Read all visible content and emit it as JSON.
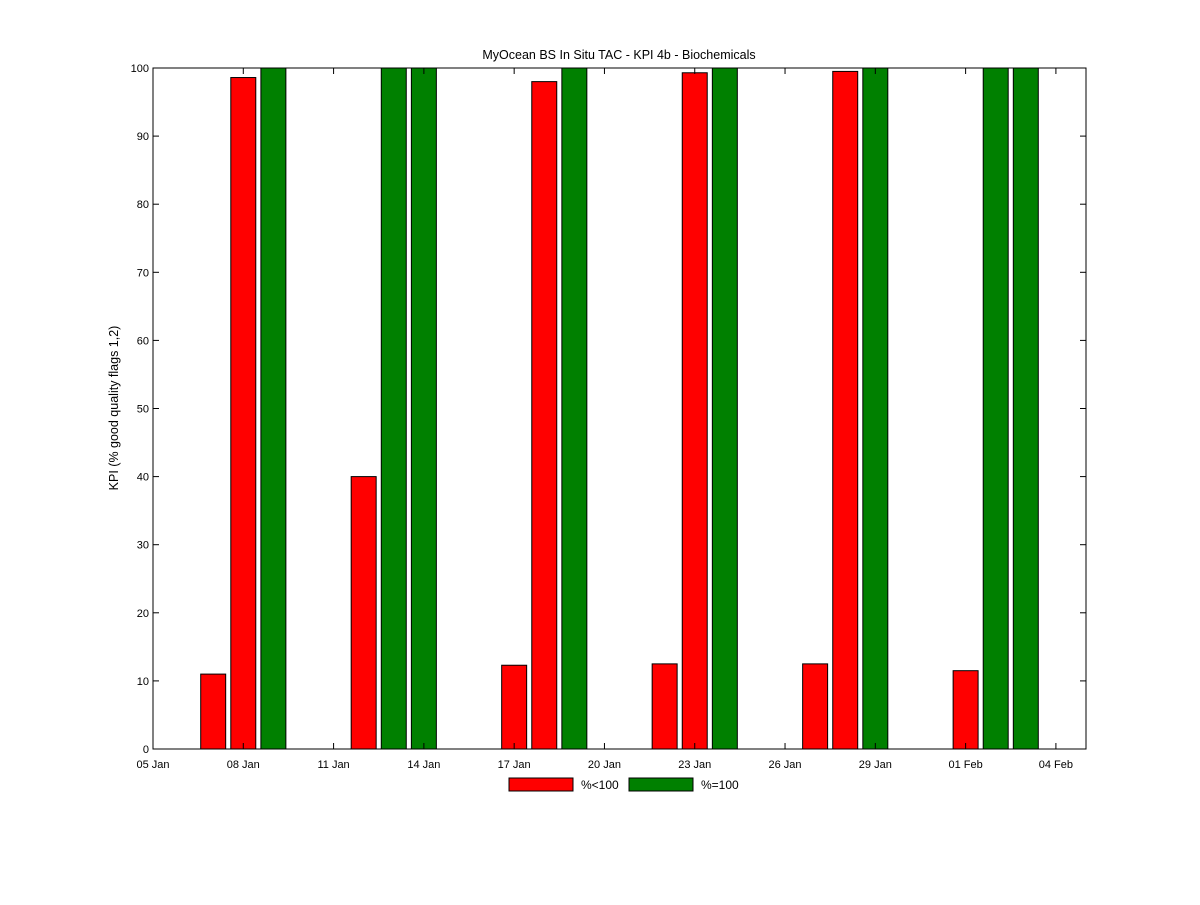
{
  "chart_data": {
    "type": "bar",
    "title": "MyOcean  BS In Situ TAC - KPI 4b - Biochemicals",
    "xlabel": "",
    "ylabel": "KPI (% good quality flags 1,2)",
    "x_axis_type": "date",
    "xlim": [
      "2013-01-05",
      "2013-02-05"
    ],
    "ylim": [
      0,
      100
    ],
    "x_ticks": [
      {
        "date": "2013-01-05",
        "label": "05 Jan"
      },
      {
        "date": "2013-01-08",
        "label": "08 Jan"
      },
      {
        "date": "2013-01-11",
        "label": "11 Jan"
      },
      {
        "date": "2013-01-14",
        "label": "14 Jan"
      },
      {
        "date": "2013-01-17",
        "label": "17 Jan"
      },
      {
        "date": "2013-01-20",
        "label": "20 Jan"
      },
      {
        "date": "2013-01-23",
        "label": "23 Jan"
      },
      {
        "date": "2013-01-26",
        "label": "26 Jan"
      },
      {
        "date": "2013-01-29",
        "label": "29 Jan"
      },
      {
        "date": "2013-02-01",
        "label": "01 Feb"
      },
      {
        "date": "2013-02-04",
        "label": "04 Feb"
      }
    ],
    "y_ticks": [
      0,
      10,
      20,
      30,
      40,
      50,
      60,
      70,
      80,
      90,
      100
    ],
    "grid": false,
    "legend_position": "bottom-center",
    "series": [
      {
        "name": "%<100",
        "color": "#ff0000",
        "points": [
          {
            "date": "2013-01-07",
            "value": 11
          },
          {
            "date": "2013-01-08",
            "value": 98.6
          },
          {
            "date": "2013-01-12",
            "value": 40
          },
          {
            "date": "2013-01-17",
            "value": 12.3
          },
          {
            "date": "2013-01-18",
            "value": 98
          },
          {
            "date": "2013-01-22",
            "value": 12.5
          },
          {
            "date": "2013-01-23",
            "value": 99.3
          },
          {
            "date": "2013-01-27",
            "value": 12.5
          },
          {
            "date": "2013-01-28",
            "value": 99.5
          },
          {
            "date": "2013-02-01",
            "value": 11.5
          }
        ]
      },
      {
        "name": "%=100",
        "color": "#008000",
        "points": [
          {
            "date": "2013-01-09",
            "value": 100
          },
          {
            "date": "2013-01-13",
            "value": 100
          },
          {
            "date": "2013-01-14",
            "value": 100
          },
          {
            "date": "2013-01-19",
            "value": 100
          },
          {
            "date": "2013-01-24",
            "value": 100
          },
          {
            "date": "2013-01-29",
            "value": 100
          },
          {
            "date": "2013-02-02",
            "value": 100
          },
          {
            "date": "2013-02-03",
            "value": 100
          }
        ]
      }
    ]
  }
}
